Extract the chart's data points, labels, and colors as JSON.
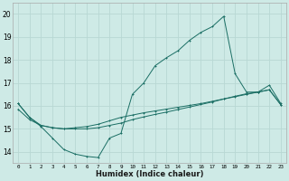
{
  "xlabel": "Humidex (Indice chaleur)",
  "background_color": "#ceeae6",
  "grid_color": "#b8d8d4",
  "line_color": "#1a6e64",
  "xlim": [
    -0.5,
    23.5
  ],
  "ylim": [
    13.5,
    20.5
  ],
  "yticks": [
    14,
    15,
    16,
    17,
    18,
    19,
    20
  ],
  "xticks": [
    0,
    1,
    2,
    3,
    4,
    5,
    6,
    7,
    8,
    9,
    10,
    11,
    12,
    13,
    14,
    15,
    16,
    17,
    18,
    19,
    20,
    21,
    22,
    23
  ],
  "series1_x": [
    0,
    1,
    2,
    3,
    4,
    5,
    6,
    7,
    8,
    9,
    10,
    11,
    12,
    13,
    14,
    15,
    16,
    17,
    18,
    19,
    20,
    21,
    22,
    23
  ],
  "series1_y": [
    16.1,
    15.5,
    15.1,
    14.6,
    14.1,
    13.9,
    13.8,
    13.75,
    14.6,
    14.8,
    16.5,
    17.0,
    17.75,
    18.1,
    18.4,
    18.85,
    19.2,
    19.45,
    19.9,
    17.4,
    16.6,
    16.6,
    16.9,
    16.1
  ],
  "series2_x": [
    0,
    1,
    2,
    3,
    4,
    5,
    6,
    7,
    8,
    9,
    10,
    11,
    12,
    13,
    14,
    15,
    16,
    17,
    18,
    19,
    20,
    21,
    22,
    23
  ],
  "series2_y": [
    15.85,
    15.4,
    15.15,
    15.05,
    15.0,
    15.05,
    15.1,
    15.2,
    15.35,
    15.5,
    15.6,
    15.7,
    15.78,
    15.86,
    15.94,
    16.02,
    16.1,
    16.2,
    16.3,
    16.4,
    16.5,
    16.6,
    16.7,
    16.05
  ],
  "series3_x": [
    0,
    1,
    2,
    3,
    4,
    5,
    6,
    7,
    8,
    9,
    10,
    11,
    12,
    13,
    14,
    15,
    16,
    17,
    18,
    19,
    20,
    21,
    22,
    23
  ],
  "series3_y": [
    16.1,
    15.5,
    15.15,
    15.05,
    15.0,
    15.0,
    15.0,
    15.05,
    15.15,
    15.25,
    15.4,
    15.52,
    15.63,
    15.73,
    15.84,
    15.95,
    16.06,
    16.17,
    16.3,
    16.42,
    16.53,
    16.6,
    16.7,
    16.05
  ]
}
